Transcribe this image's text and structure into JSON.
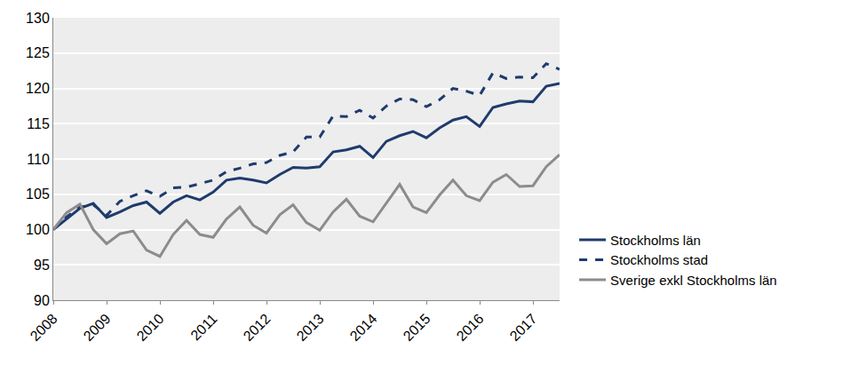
{
  "chart_data": {
    "type": "line",
    "categories": [
      "2008",
      null,
      null,
      null,
      "2009",
      null,
      null,
      null,
      "2010",
      null,
      null,
      null,
      "2011",
      null,
      null,
      null,
      "2012",
      null,
      null,
      null,
      "2013",
      null,
      null,
      null,
      "2014",
      null,
      null,
      null,
      "2015",
      null,
      null,
      null,
      "2016",
      null,
      null,
      null,
      "2017",
      null,
      null
    ],
    "series": [
      {
        "name": "Stockholms län",
        "color": "#1f3b6e",
        "line_style": "solid",
        "values": [
          100,
          101.5,
          103,
          103.7,
          101.7,
          102.5,
          103.4,
          103.9,
          102.3,
          103.9,
          104.8,
          104.2,
          105.3,
          107,
          107.3,
          107,
          106.6,
          107.8,
          108.8,
          108.7,
          108.9,
          111,
          111.3,
          111.8,
          110.2,
          112.5,
          113.3,
          113.9,
          113,
          114.4,
          115.5,
          116,
          114.6,
          117.3,
          117.8,
          118.2,
          118.1,
          120.3,
          120.7
        ]
      },
      {
        "name": "Stockholms stad",
        "color": "#1f3b6e",
        "line_style": "dashed",
        "values": [
          100,
          101.8,
          103.2,
          103.5,
          102,
          104,
          104.8,
          105.5,
          104.7,
          105.9,
          106,
          106.5,
          107,
          108.2,
          108.7,
          109.3,
          109.5,
          110.5,
          111,
          113.1,
          113.1,
          116.1,
          116,
          116.9,
          115.8,
          117.5,
          118.5,
          118.4,
          117.4,
          118.4,
          120,
          119.6,
          119,
          122.2,
          121.4,
          121.6,
          121.5,
          123.5,
          122.7
        ]
      },
      {
        "name": "Sverige exkl Stockholms län",
        "color": "#8c8c8c",
        "line_style": "solid",
        "values": [
          100,
          102.4,
          103.6,
          100,
          98,
          99.4,
          99.8,
          97.1,
          96.2,
          99.3,
          101.3,
          99.3,
          98.9,
          101.5,
          103.2,
          100.6,
          99.5,
          102.1,
          103.5,
          101,
          99.9,
          102.5,
          104.3,
          101.9,
          101.1,
          103.8,
          106.4,
          103.2,
          102.4,
          104.9,
          107,
          104.8,
          104.1,
          106.7,
          107.8,
          106.1,
          106.2,
          108.9,
          110.6
        ]
      }
    ],
    "ylim": [
      90,
      130
    ],
    "yticks": [
      90,
      95,
      100,
      105,
      110,
      115,
      120,
      125,
      130
    ],
    "grid": true,
    "legend": "right"
  }
}
